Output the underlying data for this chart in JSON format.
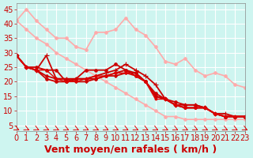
{
  "xlabel": "Vent moyen/en rafales ( km/h )",
  "ylabel": "",
  "bg_color": "#cef5f0",
  "grid_color": "#ffffff",
  "xlim": [
    0,
    23
  ],
  "ylim": [
    3,
    47
  ],
  "yticks": [
    5,
    10,
    15,
    20,
    25,
    30,
    35,
    40,
    45
  ],
  "xticks": [
    0,
    1,
    2,
    3,
    4,
    5,
    6,
    7,
    8,
    9,
    10,
    11,
    12,
    13,
    14,
    15,
    16,
    17,
    18,
    19,
    20,
    21,
    22,
    23
  ],
  "lines": [
    {
      "x": [
        0,
        1,
        2,
        3,
        4,
        5,
        6,
        7,
        8,
        9,
        10,
        11,
        12,
        13,
        14,
        15,
        16,
        17,
        18,
        19,
        20,
        21,
        22,
        23
      ],
      "y": [
        41,
        45,
        41,
        38,
        35,
        35,
        32,
        31,
        37,
        37,
        38,
        42,
        38,
        36,
        32,
        27,
        26,
        28,
        24,
        22,
        23,
        22,
        19,
        18
      ],
      "color": "#ffaaaa",
      "lw": 1.2,
      "marker": "o",
      "ms": 2.5
    },
    {
      "x": [
        0,
        1,
        2,
        3,
        4,
        5,
        6,
        7,
        8,
        9,
        10,
        11,
        12,
        13,
        14,
        15,
        16,
        17,
        18,
        19,
        20,
        21,
        22,
        23
      ],
      "y": [
        41,
        38,
        35,
        33,
        30,
        28,
        26,
        24,
        22,
        20,
        18,
        16,
        14,
        12,
        10,
        8,
        8,
        7,
        7,
        7,
        7,
        7,
        7,
        7
      ],
      "color": "#ffaaaa",
      "lw": 1.2,
      "marker": "o",
      "ms": 2.5
    },
    {
      "x": [
        0,
        1,
        2,
        3,
        4,
        5,
        6,
        7,
        8,
        9,
        10,
        11,
        12,
        13,
        14,
        15,
        16,
        17,
        18,
        19,
        20,
        21,
        22,
        23
      ],
      "y": [
        29,
        25,
        25,
        24,
        24,
        20,
        21,
        24,
        24,
        24,
        26,
        24,
        23,
        20,
        16,
        14,
        13,
        12,
        12,
        11,
        9,
        8,
        8,
        8
      ],
      "color": "#cc0000",
      "lw": 1.3,
      "marker": "o",
      "ms": 2.5
    },
    {
      "x": [
        0,
        1,
        2,
        3,
        4,
        5,
        6,
        7,
        8,
        9,
        10,
        11,
        12,
        13,
        14,
        15,
        16,
        17,
        18,
        19,
        20,
        21,
        22,
        23
      ],
      "y": [
        29,
        25,
        24,
        21,
        20,
        20,
        21,
        21,
        21,
        22,
        23,
        24,
        22,
        20,
        15,
        14,
        12,
        11,
        11,
        11,
        9,
        8,
        8,
        8
      ],
      "color": "#cc0000",
      "lw": 1.3,
      "marker": "o",
      "ms": 2.5
    },
    {
      "x": [
        0,
        1,
        2,
        3,
        4,
        5,
        6,
        7,
        8,
        9,
        10,
        11,
        12,
        13,
        14,
        15,
        16,
        17,
        18,
        19,
        20,
        21,
        22,
        23
      ],
      "y": [
        29,
        25,
        24,
        29,
        21,
        21,
        21,
        21,
        22,
        23,
        24,
        26,
        24,
        22,
        19,
        14,
        12,
        12,
        12,
        11,
        9,
        9,
        8,
        8
      ],
      "color": "#cc0000",
      "lw": 1.3,
      "marker": "+",
      "ms": 4
    },
    {
      "x": [
        0,
        1,
        2,
        3,
        4,
        5,
        6,
        7,
        8,
        9,
        10,
        11,
        12,
        13,
        14,
        15,
        16,
        17,
        18,
        19,
        20,
        21,
        22,
        23
      ],
      "y": [
        29,
        25,
        24,
        22,
        21,
        21,
        20,
        20,
        21,
        22,
        22,
        23,
        23,
        20,
        15,
        14,
        12,
        11,
        11,
        11,
        9,
        8,
        8,
        8
      ],
      "color": "#cc0000",
      "lw": 1.3,
      "marker": "D",
      "ms": 2.0
    },
    {
      "x": [
        0,
        1,
        2,
        3,
        4,
        5,
        6,
        7,
        8,
        9,
        10,
        11,
        12,
        13,
        14,
        15,
        16,
        17,
        18,
        19,
        20,
        21,
        22,
        23
      ],
      "y": [
        29,
        25,
        24,
        24,
        21,
        20,
        20,
        21,
        22,
        22,
        23,
        23,
        22,
        20,
        14,
        14,
        12,
        11,
        11,
        11,
        9,
        8,
        8,
        8
      ],
      "color": "#dd0000",
      "lw": 1.0,
      "marker": "o",
      "ms": 2.0
    }
  ],
  "arrow_color": "#dd0000",
  "xlabel_color": "#cc0000",
  "xlabel_fontsize": 9,
  "tick_fontsize": 7,
  "tick_color": "#cc0000"
}
